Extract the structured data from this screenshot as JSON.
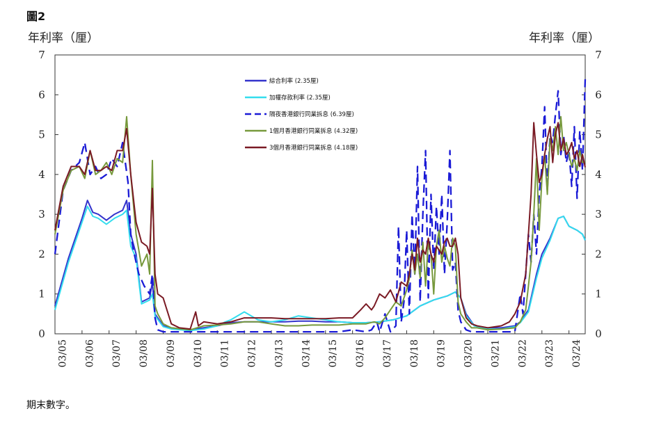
{
  "figure_label": "圖2",
  "footnote": "期末數字。",
  "chart_data": {
    "type": "line",
    "title": "",
    "y_axis_title_left": "年利率（厘）",
    "y_axis_title_right": "年利率（厘）",
    "ylim": [
      0,
      7
    ],
    "yticks": [
      0,
      1,
      2,
      3,
      4,
      5,
      6,
      7
    ],
    "categories": [
      "03/05",
      "03/06",
      "03/07",
      "03/08",
      "03/09",
      "03/10",
      "03/11",
      "03/12",
      "03/13",
      "03/14",
      "03/15",
      "03/16",
      "03/17",
      "03/18",
      "03/19",
      "03/20",
      "03/21",
      "03/22",
      "03/23",
      "03/24"
    ],
    "x_range": [
      2005,
      2024.6
    ],
    "grid": false,
    "legend_position": "top-center",
    "series": [
      {
        "name": "綜合利率 (2.35厘)",
        "color": "#3333cc",
        "style": "solid",
        "width": 2,
        "x": [
          2005.0,
          2005.5,
          2006.0,
          2006.2,
          2006.4,
          2006.6,
          2006.9,
          2007.2,
          2007.5,
          2007.65,
          2007.8,
          2008.0,
          2008.2,
          2008.5,
          2008.6,
          2008.7,
          2009.0,
          2009.3,
          2010.0,
          2010.5,
          2011.0,
          2011.3,
          2011.5,
          2012.0,
          2012.5,
          2013.0,
          2013.5,
          2014.0,
          2014.5,
          2015.0,
          2015.5,
          2016.0,
          2016.5,
          2017.0,
          2017.5,
          2018.0,
          2018.5,
          2019.0,
          2019.5,
          2019.8,
          2020.0,
          2020.2,
          2020.5,
          2021.0,
          2021.5,
          2022.0,
          2022.2,
          2022.5,
          2022.8,
          2023.0,
          2023.3,
          2023.6,
          2023.8,
          2024.0,
          2024.3,
          2024.5,
          2024.6
        ],
        "values": [
          0.7,
          1.9,
          2.9,
          3.35,
          3.05,
          3.0,
          2.85,
          3.0,
          3.1,
          3.35,
          2.5,
          2.0,
          0.8,
          0.9,
          1.3,
          0.5,
          0.2,
          0.15,
          0.1,
          0.15,
          0.2,
          0.25,
          0.28,
          0.3,
          0.3,
          0.3,
          0.3,
          0.32,
          0.32,
          0.3,
          0.3,
          0.28,
          0.28,
          0.3,
          0.35,
          0.45,
          0.7,
          0.85,
          0.95,
          1.05,
          0.9,
          0.5,
          0.2,
          0.15,
          0.15,
          0.2,
          0.3,
          0.6,
          1.5,
          2.0,
          2.4,
          2.9,
          2.95,
          2.7,
          2.6,
          2.5,
          2.35
        ]
      },
      {
        "name": "加權存款利率 (2.35厘)",
        "color": "#33ddee",
        "style": "solid",
        "width": 2,
        "x": [
          2005.0,
          2005.5,
          2006.0,
          2006.2,
          2006.4,
          2006.6,
          2006.9,
          2007.2,
          2007.5,
          2007.65,
          2007.8,
          2008.0,
          2008.2,
          2008.5,
          2008.6,
          2008.7,
          2009.0,
          2009.3,
          2010.0,
          2010.5,
          2011.0,
          2011.3,
          2011.5,
          2012.0,
          2012.5,
          2013.0,
          2013.5,
          2014.0,
          2014.5,
          2015.0,
          2015.5,
          2016.0,
          2016.5,
          2017.0,
          2017.5,
          2018.0,
          2018.5,
          2019.0,
          2019.5,
          2019.8,
          2020.0,
          2020.2,
          2020.5,
          2021.0,
          2021.5,
          2022.0,
          2022.2,
          2022.5,
          2022.8,
          2023.0,
          2023.3,
          2023.6,
          2023.8,
          2024.0,
          2024.3,
          2024.5,
          2024.6
        ],
        "values": [
          0.6,
          1.8,
          2.8,
          3.2,
          2.95,
          2.9,
          2.75,
          2.9,
          3.0,
          3.1,
          2.2,
          1.9,
          0.75,
          0.85,
          1.0,
          0.45,
          0.18,
          0.12,
          0.08,
          0.12,
          0.2,
          0.3,
          0.35,
          0.55,
          0.35,
          0.3,
          0.35,
          0.45,
          0.4,
          0.35,
          0.3,
          0.28,
          0.28,
          0.3,
          0.35,
          0.45,
          0.7,
          0.85,
          0.95,
          1.05,
          0.9,
          0.45,
          0.2,
          0.12,
          0.12,
          0.18,
          0.28,
          0.55,
          1.4,
          1.9,
          2.35,
          2.9,
          2.95,
          2.7,
          2.6,
          2.5,
          2.35
        ]
      },
      {
        "name": "隔夜香港銀行同業拆息 (6.39厘)",
        "color": "#1a1ad6",
        "style": "dashed",
        "width": 2.3,
        "x": [
          2005.0,
          2005.3,
          2005.6,
          2005.9,
          2006.1,
          2006.3,
          2006.5,
          2006.7,
          2006.9,
          2007.1,
          2007.3,
          2007.5,
          2007.7,
          2007.8,
          2007.9,
          2008.1,
          2008.3,
          2008.5,
          2008.6,
          2008.7,
          2008.8,
          2009.0,
          2009.5,
          2010.0,
          2010.5,
          2011.0,
          2011.5,
          2012.0,
          2012.5,
          2013.0,
          2013.5,
          2014.0,
          2014.5,
          2015.0,
          2015.5,
          2016.0,
          2016.5,
          2016.7,
          2016.9,
          2017.0,
          2017.2,
          2017.4,
          2017.6,
          2017.7,
          2017.8,
          2017.9,
          2018.0,
          2018.1,
          2018.2,
          2018.3,
          2018.4,
          2018.5,
          2018.6,
          2018.7,
          2018.8,
          2018.9,
          2019.0,
          2019.1,
          2019.2,
          2019.3,
          2019.4,
          2019.5,
          2019.6,
          2019.7,
          2019.8,
          2019.9,
          2020.0,
          2020.2,
          2020.4,
          2020.6,
          2021.0,
          2021.5,
          2022.0,
          2022.2,
          2022.3,
          2022.5,
          2022.6,
          2022.7,
          2022.8,
          2022.9,
          2023.0,
          2023.1,
          2023.2,
          2023.3,
          2023.4,
          2023.5,
          2023.6,
          2023.7,
          2023.8,
          2023.9,
          2024.0,
          2024.1,
          2024.2,
          2024.3,
          2024.4,
          2024.5,
          2024.6
        ],
        "values": [
          2.0,
          3.6,
          4.1,
          4.3,
          4.8,
          4.0,
          4.2,
          3.9,
          4.0,
          4.4,
          4.2,
          4.8,
          3.8,
          2.5,
          2.1,
          1.5,
          1.2,
          1.0,
          1.5,
          0.4,
          0.1,
          0.05,
          0.05,
          0.05,
          0.05,
          0.05,
          0.05,
          0.05,
          0.05,
          0.05,
          0.05,
          0.05,
          0.05,
          0.05,
          0.05,
          0.1,
          0.05,
          0.1,
          0.3,
          0.05,
          0.5,
          0.05,
          0.2,
          2.7,
          0.3,
          0.8,
          2.6,
          0.5,
          3.0,
          1.5,
          4.2,
          0.8,
          3.0,
          4.6,
          0.9,
          3.5,
          1.6,
          3.2,
          2.0,
          3.5,
          1.5,
          2.8,
          4.6,
          1.6,
          1.8,
          0.6,
          0.3,
          0.1,
          0.05,
          0.05,
          0.05,
          0.05,
          0.05,
          1.0,
          0.5,
          2.5,
          1.8,
          3.0,
          2.0,
          3.5,
          4.2,
          5.7,
          3.6,
          5.0,
          4.8,
          5.5,
          6.1,
          4.5,
          5.0,
          4.3,
          4.6,
          3.7,
          5.2,
          3.4,
          5.1,
          4.1,
          6.39
        ]
      },
      {
        "name": "1個月香港銀行同業拆息 (4.32厘)",
        "color": "#77993c",
        "style": "solid",
        "width": 2,
        "x": [
          2005.0,
          2005.3,
          2005.6,
          2005.9,
          2006.1,
          2006.3,
          2006.5,
          2006.7,
          2006.9,
          2007.1,
          2007.3,
          2007.5,
          2007.65,
          2007.8,
          2008.0,
          2008.2,
          2008.4,
          2008.5,
          2008.6,
          2008.7,
          2008.8,
          2009.0,
          2009.3,
          2010.0,
          2010.5,
          2011.0,
          2011.5,
          2012.0,
          2012.5,
          2013.0,
          2013.5,
          2014.0,
          2014.5,
          2015.0,
          2015.5,
          2016.0,
          2016.5,
          2016.8,
          2017.0,
          2017.2,
          2017.4,
          2017.6,
          2017.8,
          2018.0,
          2018.1,
          2018.2,
          2018.3,
          2018.4,
          2018.5,
          2018.6,
          2018.7,
          2018.8,
          2018.9,
          2019.0,
          2019.1,
          2019.2,
          2019.3,
          2019.4,
          2019.5,
          2019.6,
          2019.7,
          2019.8,
          2019.9,
          2020.0,
          2020.2,
          2020.4,
          2020.6,
          2021.0,
          2021.5,
          2022.0,
          2022.2,
          2022.4,
          2022.5,
          2022.6,
          2022.7,
          2022.8,
          2022.9,
          2023.0,
          2023.1,
          2023.2,
          2023.3,
          2023.4,
          2023.5,
          2023.6,
          2023.7,
          2023.8,
          2023.9,
          2024.0,
          2024.1,
          2024.2,
          2024.3,
          2024.4,
          2024.5,
          2024.6
        ],
        "values": [
          2.5,
          3.6,
          4.1,
          4.2,
          3.9,
          4.6,
          4.0,
          4.1,
          4.3,
          4.0,
          4.4,
          4.3,
          5.45,
          4.0,
          2.5,
          1.7,
          2.0,
          1.5,
          4.35,
          0.7,
          0.5,
          0.25,
          0.15,
          0.1,
          0.2,
          0.22,
          0.25,
          0.3,
          0.3,
          0.25,
          0.2,
          0.2,
          0.22,
          0.22,
          0.22,
          0.25,
          0.25,
          0.3,
          0.25,
          0.4,
          0.6,
          0.8,
          0.7,
          1.1,
          1.4,
          2.1,
          1.5,
          2.0,
          1.4,
          2.3,
          1.2,
          2.3,
          2.0,
          1.0,
          2.2,
          2.6,
          1.8,
          2.2,
          1.9,
          1.7,
          2.4,
          2.2,
          0.8,
          0.5,
          0.3,
          0.15,
          0.15,
          0.1,
          0.12,
          0.15,
          0.3,
          0.6,
          1.2,
          1.8,
          3.0,
          4.4,
          2.6,
          3.9,
          4.5,
          3.5,
          4.9,
          4.6,
          5.2,
          4.5,
          5.45,
          4.6,
          4.8,
          4.5,
          4.2,
          4.4,
          4.1,
          4.6,
          4.3,
          4.32
        ]
      },
      {
        "name": "3個月香港銀行同業拆息 (4.18厘)",
        "color": "#7a1a24",
        "style": "solid",
        "width": 2,
        "x": [
          2005.0,
          2005.3,
          2005.6,
          2005.9,
          2006.1,
          2006.3,
          2006.5,
          2006.7,
          2006.9,
          2007.1,
          2007.3,
          2007.5,
          2007.65,
          2007.8,
          2008.0,
          2008.2,
          2008.4,
          2008.5,
          2008.6,
          2008.7,
          2008.8,
          2009.0,
          2009.3,
          2009.6,
          2010.0,
          2010.2,
          2010.3,
          2010.5,
          2011.0,
          2011.5,
          2012.0,
          2012.5,
          2013.0,
          2013.5,
          2014.0,
          2014.5,
          2015.0,
          2015.5,
          2016.0,
          2016.3,
          2016.5,
          2016.7,
          2016.8,
          2017.0,
          2017.2,
          2017.4,
          2017.6,
          2017.8,
          2018.0,
          2018.1,
          2018.2,
          2018.3,
          2018.4,
          2018.5,
          2018.6,
          2018.7,
          2018.8,
          2018.9,
          2019.0,
          2019.1,
          2019.2,
          2019.3,
          2019.4,
          2019.5,
          2019.6,
          2019.7,
          2019.8,
          2019.9,
          2020.0,
          2020.2,
          2020.4,
          2020.6,
          2021.0,
          2021.5,
          2021.8,
          2022.0,
          2022.2,
          2022.4,
          2022.5,
          2022.6,
          2022.7,
          2022.8,
          2022.9,
          2023.0,
          2023.1,
          2023.2,
          2023.3,
          2023.4,
          2023.5,
          2023.6,
          2023.7,
          2023.8,
          2023.9,
          2024.0,
          2024.1,
          2024.2,
          2024.3,
          2024.4,
          2024.5,
          2024.6
        ],
        "values": [
          2.6,
          3.7,
          4.2,
          4.2,
          4.0,
          4.6,
          4.1,
          4.1,
          4.2,
          4.1,
          4.6,
          4.6,
          5.15,
          4.0,
          2.8,
          2.3,
          2.2,
          2.0,
          3.65,
          1.5,
          1.0,
          0.9,
          0.25,
          0.15,
          0.12,
          0.55,
          0.2,
          0.3,
          0.25,
          0.3,
          0.4,
          0.4,
          0.4,
          0.38,
          0.38,
          0.38,
          0.38,
          0.4,
          0.4,
          0.6,
          0.75,
          0.6,
          0.7,
          1.0,
          0.9,
          1.1,
          0.8,
          1.3,
          1.2,
          1.5,
          2.0,
          1.6,
          2.4,
          1.8,
          2.1,
          2.0,
          2.4,
          2.0,
          1.8,
          2.2,
          2.1,
          2.0,
          2.3,
          2.4,
          2.2,
          2.2,
          2.4,
          2.0,
          0.9,
          0.4,
          0.25,
          0.2,
          0.15,
          0.2,
          0.3,
          0.5,
          0.8,
          1.5,
          2.5,
          3.5,
          5.3,
          4.5,
          3.8,
          4.0,
          4.5,
          4.9,
          5.2,
          4.3,
          5.0,
          5.3,
          4.6,
          4.9,
          4.5,
          4.6,
          4.8,
          4.4,
          4.6,
          4.2,
          4.5,
          4.18
        ]
      }
    ]
  }
}
